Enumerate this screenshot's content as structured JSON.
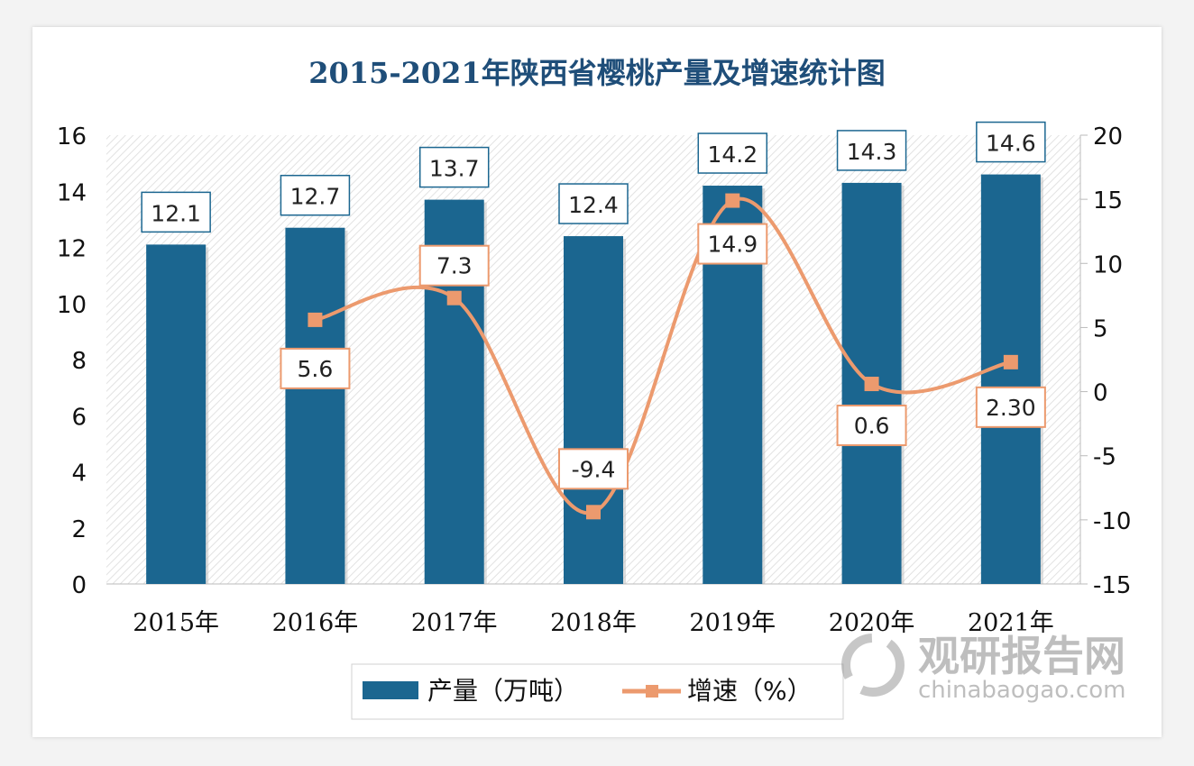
{
  "chart_data": {
    "type": "bar+line",
    "title": "2015-2021年陕西省樱桃产量及增速统计图",
    "categories": [
      "2015年",
      "2016年",
      "2017年",
      "2018年",
      "2019年",
      "2020年",
      "2021年"
    ],
    "series": [
      {
        "name": "产量（万吨）",
        "type": "bar",
        "axis": "left",
        "color": "#1b6690",
        "values": [
          12.1,
          12.7,
          13.7,
          12.4,
          14.2,
          14.3,
          14.6
        ],
        "labels": [
          "12.1",
          "12.7",
          "13.7",
          "12.4",
          "14.2",
          "14.3",
          "14.6"
        ]
      },
      {
        "name": "增速（%）",
        "type": "line",
        "axis": "right",
        "color": "#ec9a6e",
        "smooth": true,
        "values": [
          null,
          5.6,
          7.3,
          -9.4,
          14.9,
          0.6,
          2.3
        ],
        "labels": [
          "",
          "5.6",
          "7.3",
          "-9.4",
          "14.9",
          "0.6",
          "2.30"
        ]
      }
    ],
    "y_left": {
      "range": [
        0,
        16
      ],
      "ticks": [
        "0",
        "2",
        "4",
        "6",
        "8",
        "10",
        "12",
        "14",
        "16"
      ]
    },
    "y_right": {
      "range": [
        -15,
        20
      ],
      "ticks": [
        "-15",
        "-10",
        "-5",
        "0",
        "5",
        "10",
        "15",
        "20"
      ]
    },
    "legend": "bottom",
    "grid": false,
    "plot_background": "diagonal hatch"
  },
  "watermark": {
    "cn": "观研报告网",
    "en": "chinabaogao.com"
  }
}
